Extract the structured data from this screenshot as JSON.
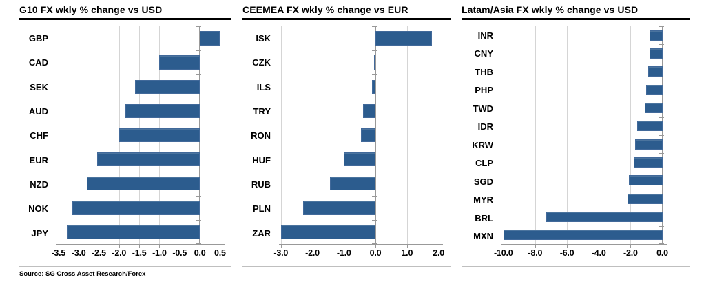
{
  "source_note": "Source: SG Cross Asset Research/Forex",
  "colors": {
    "bar": "#2c5c8e",
    "grid": "#d5d5d5",
    "axis": "#999999",
    "title_underline": "#000000",
    "panel_divider": "#bfbfbf"
  },
  "chart_data": [
    {
      "type": "bar",
      "orientation": "horizontal",
      "title": "G10 FX wkly % change vs USD",
      "categories": [
        "GBP",
        "CAD",
        "SEK",
        "AUD",
        "CHF",
        "EUR",
        "NZD",
        "NOK",
        "JPY"
      ],
      "values": [
        0.5,
        -1.0,
        -1.6,
        -1.85,
        -2.0,
        -2.55,
        -2.8,
        -3.15,
        -3.3
      ],
      "xlim": [
        -3.5,
        0.5
      ],
      "xticks": [
        -3.5,
        -3.0,
        -2.5,
        -2.0,
        -1.5,
        -1.0,
        -0.5,
        0.0,
        0.5
      ],
      "xtick_labels": [
        "-3.5",
        "-3.0",
        "-2.5",
        "-2.0",
        "-1.5",
        "-1.0",
        "-0.5",
        "0.0",
        "0.5"
      ],
      "grid": true,
      "legend": false
    },
    {
      "type": "bar",
      "orientation": "horizontal",
      "title": "CEEMEA FX wkly % change vs EUR",
      "categories": [
        "ISK",
        "CZK",
        "ILS",
        "TRY",
        "RON",
        "HUF",
        "RUB",
        "PLN",
        "ZAR"
      ],
      "values": [
        1.8,
        -0.05,
        -0.1,
        -0.4,
        -0.45,
        -1.0,
        -1.45,
        -2.3,
        -3.0
      ],
      "xlim": [
        -3.0,
        2.0
      ],
      "xticks": [
        -3.0,
        -2.0,
        -1.0,
        0.0,
        1.0,
        2.0
      ],
      "xtick_labels": [
        "-3.0",
        "-2.0",
        "-1.0",
        "0.0",
        "1.0",
        "2.0"
      ],
      "grid": true,
      "legend": false
    },
    {
      "type": "bar",
      "orientation": "horizontal",
      "title": "Latam/Asia FX wkly % change vs USD",
      "categories": [
        "INR",
        "CNY",
        "THB",
        "PHP",
        "TWD",
        "IDR",
        "KRW",
        "CLP",
        "SGD",
        "MYR",
        "BRL",
        "MXN"
      ],
      "values": [
        -0.8,
        -0.8,
        -0.9,
        -1.0,
        -1.1,
        -1.6,
        -1.7,
        -1.8,
        -2.1,
        -2.2,
        -7.3,
        -10.0
      ],
      "xlim": [
        -10.0,
        0.0
      ],
      "xticks": [
        -10.0,
        -8.0,
        -6.0,
        -4.0,
        -2.0,
        0.0
      ],
      "xtick_labels": [
        "-10.0",
        "-8.0",
        "-6.0",
        "-4.0",
        "-2.0",
        "0.0"
      ],
      "grid": true,
      "legend": false
    }
  ]
}
